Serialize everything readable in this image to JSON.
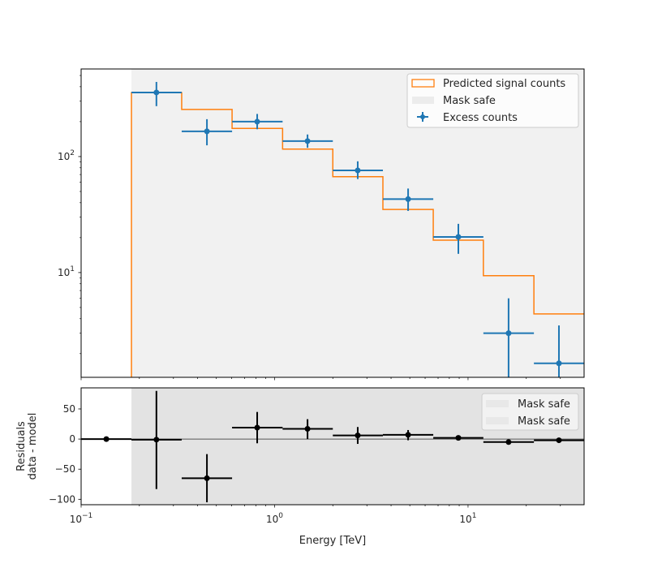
{
  "chart_data": [
    {
      "type": "step",
      "panel": "top",
      "xscale": "log",
      "yscale": "log",
      "xlim": [
        0.1,
        39.8
      ],
      "ylim": [
        1.25,
        569
      ],
      "xlabel": "",
      "ylabel": "",
      "yticks": [
        {
          "value": 10,
          "label": "10",
          "exp": "1"
        },
        {
          "value": 100,
          "label": "10",
          "exp": "2"
        }
      ],
      "mask_safe_range": [
        0.182,
        39.8
      ],
      "bin_edges": [
        0.182,
        0.331,
        0.603,
        1.1,
        2.0,
        3.63,
        6.61,
        12.0,
        21.9,
        39.8
      ],
      "series": [
        {
          "name": "Predicted signal counts",
          "kind": "step",
          "color": "#ff7f0e",
          "values": [
            355,
            255,
            175,
            116,
            67,
            35,
            19,
            9.4,
            4.4
          ]
        },
        {
          "name": "Excess counts",
          "kind": "errorbar",
          "color": "#1f77b4",
          "x": [
            0.245,
            0.447,
            0.813,
            1.48,
            2.69,
            4.9,
            8.91,
            16.2,
            29.5
          ],
          "values": [
            357,
            165,
            200,
            136,
            76,
            43,
            20.3,
            3.0,
            1.65
          ],
          "y_err_upper": [
            440,
            210,
            233,
            155,
            91,
            53,
            26.3,
            6.0,
            3.5
          ],
          "y_err_lower": [
            272,
            125,
            172,
            119,
            64,
            34,
            14.5,
            0.5,
            0.5
          ]
        }
      ],
      "legend": {
        "position": "top-right",
        "entries": [
          {
            "label": "Predicted signal counts",
            "kind": "orange-box"
          },
          {
            "label": "Mask safe",
            "kind": "grey-patch"
          },
          {
            "label": "Excess counts",
            "kind": "errorbar"
          }
        ]
      }
    },
    {
      "type": "scatter",
      "panel": "bottom",
      "xscale": "log",
      "xlim": [
        0.1,
        39.8
      ],
      "ylim": [
        -109,
        85
      ],
      "xlabel": "Energy [TeV]",
      "ylabel": "Residuals\ndata - model",
      "ylabel_lines": [
        "Residuals",
        "data - model"
      ],
      "yticks": [
        50,
        0,
        -50,
        -100
      ],
      "ytick_labels": [
        "50",
        "0",
        "−50",
        "−100"
      ],
      "xticks": [
        {
          "value": 0.1,
          "label": "10",
          "exp": "−1"
        },
        {
          "value": 1,
          "label": "10",
          "exp": "0"
        },
        {
          "value": 10,
          "label": "10",
          "exp": "1"
        }
      ],
      "mask_safe_range": [
        0.182,
        39.8
      ],
      "zero_line": true,
      "bin_edges": [
        0.1,
        0.182,
        0.331,
        0.603,
        1.1,
        2.0,
        3.63,
        6.61,
        12.0,
        21.9,
        39.8
      ],
      "series": [
        {
          "name": "Residuals",
          "color": "#000000",
          "x": [
            0.135,
            0.245,
            0.447,
            0.813,
            1.48,
            2.69,
            4.9,
            8.91,
            16.2,
            29.5
          ],
          "values": [
            0,
            -1,
            -65,
            19,
            17,
            6,
            7,
            2,
            -5,
            -2
          ],
          "y_err_upper": [
            0,
            80,
            -25,
            45,
            33,
            20,
            15,
            4,
            -3,
            0
          ],
          "y_err_lower": [
            0,
            -83,
            -105,
            -7,
            0,
            -8,
            -2,
            0,
            -7,
            -4
          ]
        }
      ],
      "legend": {
        "position": "top-right",
        "entries": [
          {
            "label": "Mask safe",
            "kind": "grey-patch"
          },
          {
            "label": "Mask safe",
            "kind": "grey-patch"
          }
        ]
      }
    }
  ]
}
